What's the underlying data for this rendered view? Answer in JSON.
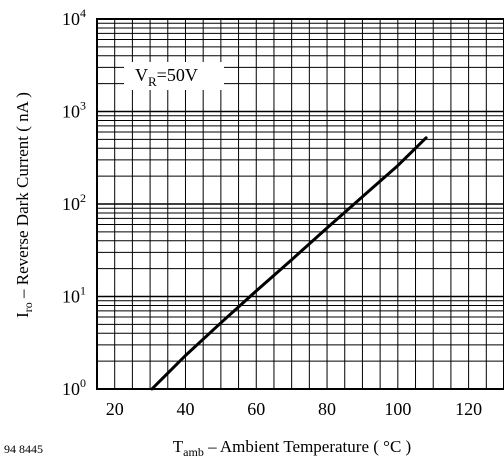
{
  "chart_data": {
    "type": "line",
    "xscale": "linear",
    "yscale": "log",
    "xlim": [
      15,
      130
    ],
    "ylim": [
      1,
      10000
    ],
    "xticks": [
      20,
      40,
      60,
      80,
      100,
      120
    ],
    "xtick_labels": [
      "20",
      "40",
      "60",
      "80",
      "100",
      "120"
    ],
    "yticks": [
      1,
      10,
      100,
      1000,
      10000
    ],
    "ytick_labels": [
      {
        "base": "10",
        "exp": "0"
      },
      {
        "base": "10",
        "exp": "1"
      },
      {
        "base": "10",
        "exp": "2"
      },
      {
        "base": "10",
        "exp": "3"
      },
      {
        "base": "10",
        "exp": "4"
      }
    ],
    "xminor": [
      25,
      30,
      35,
      45,
      50,
      55,
      65,
      70,
      75,
      85,
      90,
      95,
      105,
      110,
      115,
      125
    ],
    "grid": true,
    "xlabel": {
      "main": "T",
      "sub": "amb",
      "rest": " – Ambient Temperature ( °C )"
    },
    "ylabel": {
      "main": "I",
      "sub": "ro",
      "rest": " – Reverse Dark Current ( nA )"
    },
    "annotation": {
      "main": "V",
      "sub": "R",
      "rest": "=50V"
    },
    "figure_id": "94 8445",
    "series": [
      {
        "color": "#000000",
        "x": [
          30.5,
          40,
          50,
          60,
          70,
          80,
          90,
          100,
          108
        ],
        "y": [
          1.0,
          2.3,
          5.2,
          11.5,
          25,
          55,
          120,
          260,
          520
        ]
      }
    ]
  }
}
